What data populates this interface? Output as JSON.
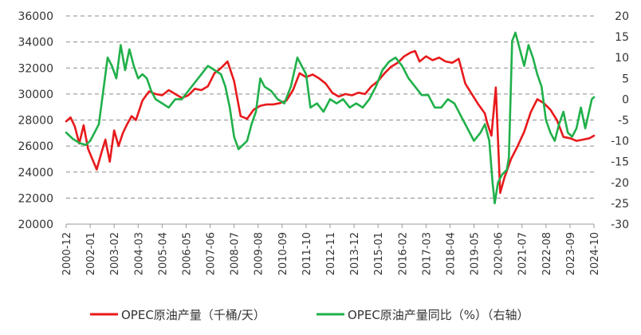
{
  "chart_data": {
    "type": "line",
    "title": "",
    "xlabel": "",
    "ylabel": "",
    "ylim_left": [
      20000,
      36000
    ],
    "ylim_right": [
      -30,
      20
    ],
    "yticks_left": [
      "20000",
      "22000",
      "24000",
      "26000",
      "28000",
      "30000",
      "32000",
      "34000",
      "36000"
    ],
    "yticks_right": [
      "-30",
      "-25",
      "-20",
      "-15",
      "-10",
      "-5",
      "0",
      "5",
      "10",
      "15",
      "20"
    ],
    "xticks": [
      "2000-12",
      "2002-01",
      "2003-02",
      "2004-03",
      "2005-04",
      "2006-05",
      "2007-06",
      "2008-07",
      "2009-08",
      "2010-09",
      "2011-10",
      "2012-11",
      "2013-12",
      "2015-01",
      "2016-02",
      "2017-03",
      "2018-04",
      "2019-05",
      "2020-06",
      "2021-07",
      "2022-08",
      "2023-09",
      "2024-10"
    ],
    "grid": "horizontal dashed",
    "legend_position": "bottom",
    "series": [
      {
        "name": "OPEC原油产量（千桶/天）",
        "axis": "left",
        "color": "#e8191b",
        "x": [
          2000.9,
          2001.1,
          2001.3,
          2001.5,
          2001.7,
          2001.9,
          2002.1,
          2002.3,
          2002.5,
          2002.7,
          2002.9,
          2003.1,
          2003.3,
          2003.5,
          2003.7,
          2003.9,
          2004.1,
          2004.4,
          2004.7,
          2005.0,
          2005.3,
          2005.6,
          2005.9,
          2006.2,
          2006.5,
          2006.8,
          2007.1,
          2007.4,
          2007.7,
          2008.0,
          2008.3,
          2008.6,
          2008.9,
          2009.2,
          2009.5,
          2009.8,
          2010.1,
          2010.4,
          2010.7,
          2011.0,
          2011.3,
          2011.6,
          2011.9,
          2012.2,
          2012.5,
          2012.8,
          2013.1,
          2013.4,
          2013.7,
          2014.0,
          2014.3,
          2014.6,
          2014.9,
          2015.2,
          2015.5,
          2015.8,
          2016.1,
          2016.4,
          2016.7,
          2016.9,
          2017.1,
          2017.4,
          2017.7,
          2018.0,
          2018.3,
          2018.6,
          2018.9,
          2019.2,
          2019.5,
          2019.8,
          2020.1,
          2020.2,
          2020.4,
          2020.6,
          2020.8,
          2021.0,
          2021.3,
          2021.6,
          2021.9,
          2022.2,
          2022.5,
          2022.8,
          2023.1,
          2023.4,
          2023.7,
          2024.0,
          2024.3,
          2024.6,
          2024.9,
          2025.1
        ],
        "values": [
          27900,
          28200,
          27500,
          26200,
          27600,
          25800,
          25000,
          24200,
          25400,
          26500,
          24800,
          27200,
          26000,
          27000,
          27700,
          28300,
          28000,
          29500,
          30200,
          30000,
          29900,
          30300,
          30000,
          29700,
          29900,
          30400,
          30300,
          30600,
          31600,
          32000,
          32500,
          31000,
          28300,
          28100,
          28800,
          29100,
          29200,
          29200,
          29300,
          29500,
          30300,
          31600,
          31300,
          31500,
          31200,
          30800,
          30100,
          29800,
          30000,
          29900,
          30100,
          30000,
          30600,
          31000,
          31600,
          32100,
          32400,
          32900,
          33200,
          33300,
          32500,
          32900,
          32600,
          32800,
          32500,
          32400,
          32700,
          30800,
          30000,
          29200,
          28500,
          27800,
          26800,
          30500,
          22400,
          23600,
          25000,
          26000,
          27100,
          28600,
          29600,
          29300,
          28800,
          28000,
          26700,
          26600,
          26400,
          26500,
          26600,
          26800
        ],
        "labels_visible": false
      },
      {
        "name": "OPEC原油产量同比（%）（右轴）",
        "axis": "right",
        "color": "#20b04a",
        "x": [
          2000.9,
          2001.2,
          2001.5,
          2001.8,
          2002.0,
          2002.2,
          2002.4,
          2002.6,
          2002.8,
          2003.0,
          2003.2,
          2003.4,
          2003.6,
          2003.8,
          2004.0,
          2004.2,
          2004.4,
          2004.6,
          2004.8,
          2005.0,
          2005.3,
          2005.6,
          2005.9,
          2006.2,
          2006.5,
          2006.8,
          2007.1,
          2007.4,
          2007.7,
          2008.0,
          2008.2,
          2008.4,
          2008.6,
          2008.8,
          2009.0,
          2009.2,
          2009.4,
          2009.6,
          2009.8,
          2010.0,
          2010.3,
          2010.6,
          2010.9,
          2011.2,
          2011.5,
          2011.7,
          2011.9,
          2012.1,
          2012.4,
          2012.7,
          2013.0,
          2013.3,
          2013.6,
          2013.9,
          2014.2,
          2014.5,
          2014.8,
          2015.1,
          2015.4,
          2015.7,
          2016.0,
          2016.3,
          2016.6,
          2016.9,
          2017.2,
          2017.5,
          2017.8,
          2018.1,
          2018.4,
          2018.7,
          2019.0,
          2019.3,
          2019.6,
          2019.9,
          2020.1,
          2020.3,
          2020.45,
          2020.55,
          2020.7,
          2020.9,
          2021.1,
          2021.2,
          2021.35,
          2021.5,
          2021.7,
          2021.9,
          2022.1,
          2022.3,
          2022.5,
          2022.7,
          2022.9,
          2023.1,
          2023.3,
          2023.5,
          2023.7,
          2023.9,
          2024.1,
          2024.3,
          2024.5,
          2024.7,
          2025.0,
          2025.1
        ],
        "values": [
          -8,
          -9.5,
          -10.5,
          -11,
          -10,
          -8,
          -6,
          2,
          10,
          8,
          5,
          13,
          7,
          12,
          8,
          5,
          6,
          5,
          2,
          0,
          -1,
          -2,
          0,
          0,
          2,
          4,
          6,
          8,
          7,
          6,
          3,
          -2,
          -9,
          -12,
          -11,
          -10,
          -6,
          -3,
          5,
          3,
          2,
          0,
          -1,
          3,
          10,
          8,
          6,
          -2,
          -1,
          -3,
          0,
          -1,
          0,
          -2,
          -1,
          -2,
          0,
          3,
          7,
          9,
          10,
          8,
          5,
          3,
          1,
          1,
          -2,
          -2,
          0,
          -1,
          -4,
          -7,
          -10,
          -8,
          -6,
          -10,
          -20,
          -25,
          -20,
          -18,
          -17,
          -14,
          14,
          16,
          12,
          8,
          13,
          10,
          6,
          3,
          -5,
          -8,
          -10,
          -6,
          -3,
          -8,
          -9,
          -7,
          -2,
          -7,
          0,
          0.5
        ],
        "labels_visible": false
      }
    ]
  }
}
